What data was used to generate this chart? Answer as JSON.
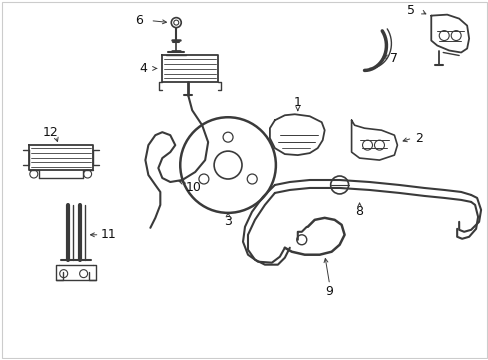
{
  "bg_color": "#ffffff",
  "line_color": "#3a3a3a",
  "fig_width": 4.89,
  "fig_height": 3.6,
  "dpi": 100,
  "border_color": "#cccccc",
  "label_fontsize": 9,
  "callout_lw": 0.7
}
